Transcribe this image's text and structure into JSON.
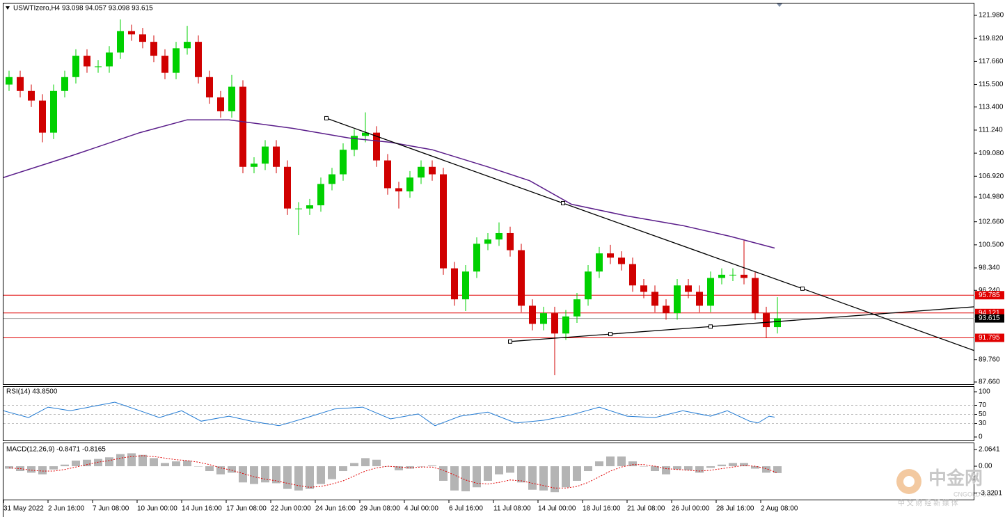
{
  "chart_data": [
    {
      "type": "candlestick",
      "title": "USWTIzero,H4  93.098 94.057 93.098 93.615",
      "up_color": "#00d000",
      "down_color": "#d00000",
      "xlim": [
        0,
        348.75
      ],
      "ylim": [
        87.4,
        123.09
      ],
      "yticks": [
        {
          "value": 121.98,
          "label": "121.980"
        },
        {
          "value": 119.82,
          "label": "119.820"
        },
        {
          "value": 117.66,
          "label": "117.660"
        },
        {
          "value": 115.5,
          "label": "115.500"
        },
        {
          "value": 113.4,
          "label": "113.400"
        },
        {
          "value": 111.24,
          "label": "111.240"
        },
        {
          "value": 109.08,
          "label": "109.080"
        },
        {
          "value": 106.92,
          "label": "106.920"
        },
        {
          "value": 104.98,
          "label": "104.980"
        },
        {
          "value": 102.66,
          "label": "102.660"
        },
        {
          "value": 100.5,
          "label": "100.500"
        },
        {
          "value": 98.34,
          "label": "98.340"
        },
        {
          "value": 96.24,
          "label": "96.240"
        },
        {
          "value": 89.76,
          "label": "89.760"
        },
        {
          "value": 87.66,
          "label": "87.660"
        }
      ],
      "x": [
        2,
        6,
        10,
        14,
        18,
        22,
        26,
        30,
        34,
        38,
        42,
        46,
        50,
        54,
        58,
        62,
        66,
        70,
        74,
        78,
        82,
        86,
        90,
        94,
        98,
        102,
        106,
        110,
        114,
        118,
        122,
        126,
        130,
        134,
        138,
        142,
        146,
        150,
        154,
        158,
        162,
        166,
        170,
        174,
        178,
        182,
        186,
        190,
        194,
        198,
        202,
        206,
        210,
        214,
        218,
        222,
        226,
        230,
        234,
        238,
        242,
        246,
        250,
        254,
        258,
        262,
        266,
        270,
        274,
        278
      ],
      "open": [
        115.5,
        116.2,
        114.9,
        114.0,
        111.0,
        114.9,
        116.2,
        118.2,
        117.2,
        117.2,
        118.5,
        120.5,
        120.2,
        119.5,
        118.2,
        116.6,
        118.9,
        119.5,
        116.2,
        114.3,
        113.0,
        115.3,
        107.8,
        108.1,
        109.7,
        107.8,
        103.9,
        103.9,
        104.2,
        106.2,
        107.1,
        109.4,
        110.7,
        111.0,
        108.4,
        105.8,
        105.5,
        106.8,
        107.8,
        107.1,
        98.3,
        95.4,
        98.0,
        100.6,
        101.0,
        101.6,
        100.0,
        94.8,
        93.1,
        94.1,
        92.2,
        93.8,
        95.4,
        98.0,
        99.7,
        99.3,
        98.7,
        96.7,
        96.1,
        94.8,
        94.1,
        96.7,
        96.1,
        94.8,
        97.4,
        97.7,
        97.7,
        97.4,
        94.1,
        92.8
      ],
      "high": [
        116.8,
        116.8,
        115.5,
        114.6,
        115.5,
        116.8,
        118.8,
        118.8,
        117.8,
        119.1,
        121.6,
        121.1,
        120.8,
        120.1,
        118.8,
        119.5,
        121.0,
        120.1,
        116.8,
        114.9,
        116.4,
        115.9,
        108.7,
        110.3,
        110.3,
        108.4,
        104.5,
        104.8,
        106.8,
        107.7,
        110.0,
        111.3,
        112.9,
        111.6,
        109.0,
        106.4,
        107.4,
        108.4,
        108.4,
        107.7,
        98.9,
        98.6,
        101.2,
        101.6,
        102.6,
        102.2,
        100.6,
        95.4,
        94.7,
        94.7,
        94.4,
        96.0,
        98.6,
        100.3,
        100.5,
        99.9,
        99.3,
        97.3,
        96.7,
        95.4,
        97.3,
        97.3,
        96.7,
        98.0,
        98.3,
        98.3,
        100.9,
        98.0,
        94.7,
        95.6
      ],
      "low": [
        114.9,
        114.3,
        113.4,
        110.1,
        110.4,
        114.3,
        115.6,
        116.6,
        116.6,
        116.6,
        117.9,
        119.6,
        118.9,
        117.6,
        116.0,
        116.0,
        118.3,
        115.6,
        113.7,
        112.4,
        112.4,
        107.2,
        107.2,
        107.5,
        107.2,
        103.3,
        101.4,
        103.3,
        103.6,
        105.6,
        106.5,
        108.8,
        110.1,
        107.8,
        105.2,
        103.9,
        104.9,
        106.2,
        106.5,
        97.7,
        94.8,
        94.3,
        97.4,
        100.0,
        100.4,
        99.4,
        94.2,
        92.5,
        92.5,
        88.3,
        91.6,
        93.2,
        94.8,
        97.4,
        98.7,
        98.1,
        96.1,
        95.5,
        94.2,
        93.5,
        93.5,
        95.5,
        94.2,
        94.2,
        96.8,
        97.1,
        96.8,
        93.5,
        91.8,
        92.2
      ],
      "close": [
        116.2,
        114.9,
        114.0,
        111.0,
        114.9,
        116.2,
        118.2,
        117.2,
        117.2,
        118.5,
        120.5,
        120.2,
        119.5,
        118.2,
        116.6,
        118.9,
        119.5,
        116.2,
        114.3,
        113.0,
        115.3,
        107.8,
        108.1,
        109.7,
        107.8,
        103.9,
        103.9,
        104.2,
        106.2,
        107.1,
        109.4,
        110.7,
        111.0,
        108.4,
        105.8,
        105.5,
        106.8,
        107.8,
        107.1,
        98.3,
        95.4,
        98.0,
        100.6,
        101.0,
        101.6,
        100.0,
        94.8,
        93.1,
        94.1,
        92.2,
        93.8,
        95.4,
        98.0,
        99.7,
        99.3,
        98.7,
        96.7,
        96.1,
        94.8,
        94.1,
        96.7,
        96.1,
        94.8,
        97.4,
        97.7,
        97.7,
        97.4,
        94.1,
        92.8,
        93.615
      ],
      "moving_average": {
        "color": "#5a1d8a",
        "x": [
          0,
          24,
          49,
          66,
          81,
          104,
          124,
          139,
          154,
          174,
          189,
          204,
          224,
          244,
          261,
          277
        ],
        "values": [
          106.8,
          108.8,
          111.0,
          112.2,
          112.2,
          111.4,
          110.5,
          110.1,
          109.4,
          107.8,
          106.5,
          104.3,
          103.2,
          102.3,
          101.3,
          100.2
        ]
      },
      "trendlines": [
        {
          "color": "#000000",
          "x": [
            116,
            201,
            287,
            348.75
          ],
          "values": [
            112.35,
            104.4,
            96.4,
            90.6
          ]
        },
        {
          "color": "#000000",
          "x": [
            182,
            218,
            254,
            348.75
          ],
          "values": [
            91.45,
            92.15,
            92.85,
            94.7
          ]
        }
      ],
      "levels": [
        {
          "value": 95.785,
          "color": "#e00000"
        },
        {
          "value": 94.121,
          "color": "#e00000"
        },
        {
          "value": 93.615,
          "color": "#000000"
        },
        {
          "value": 91.795,
          "color": "#e00000"
        }
      ],
      "xticks": [
        {
          "value": 0,
          "label": "31 May 2022"
        },
        {
          "value": 16,
          "label": "2 Jun 16:00"
        },
        {
          "value": 32,
          "label": "7 Jun 08:00"
        },
        {
          "value": 48,
          "label": "10 Jun 00:00"
        },
        {
          "value": 64,
          "label": "14 Jun 16:00"
        },
        {
          "value": 80,
          "label": "17 Jun 08:00"
        },
        {
          "value": 96,
          "label": "22 Jun 00:00"
        },
        {
          "value": 112,
          "label": "24 Jun 16:00"
        },
        {
          "value": 128,
          "label": "29 Jun 08:00"
        },
        {
          "value": 144,
          "label": "4 Jul 00:00"
        },
        {
          "value": 160,
          "label": "6 Jul 16:00"
        },
        {
          "value": 176,
          "label": "11 Jul 08:00"
        },
        {
          "value": 192,
          "label": "14 Jul 00:00"
        },
        {
          "value": 208,
          "label": "18 Jul 16:00"
        },
        {
          "value": 224,
          "label": "21 Jul 08:00"
        },
        {
          "value": 240,
          "label": "26 Jul 00:00"
        },
        {
          "value": 256,
          "label": "28 Jul 16:00"
        },
        {
          "value": 272,
          "label": "2 Aug 08:00"
        }
      ]
    },
    {
      "type": "line",
      "title": "RSI(14) 43.8500",
      "color": "#1e78d2",
      "xlim": [
        0,
        348.75
      ],
      "ylim": [
        -9.2,
        110.8
      ],
      "yticks": [
        100,
        70,
        50,
        30,
        0
      ],
      "levels": [
        70,
        50,
        30
      ],
      "x": [
        0,
        9,
        16,
        24,
        40,
        49,
        56,
        64,
        71,
        81,
        89,
        99,
        109,
        119,
        129,
        139,
        149,
        155,
        164,
        174,
        184,
        194,
        204,
        214,
        224,
        234,
        244,
        254,
        260,
        268,
        271,
        275,
        277
      ],
      "values": [
        58,
        43,
        66,
        58,
        77,
        58,
        43,
        58,
        35,
        46,
        35,
        25,
        43,
        62,
        66,
        40,
        51,
        25,
        46,
        55,
        31,
        37,
        49,
        66,
        46,
        43,
        58,
        46,
        58,
        35,
        31,
        46,
        43.85
      ]
    },
    {
      "type": "macd",
      "title": "MACD(12,26,9) -0.8471 -0.8165",
      "color": "#b4b4b4",
      "signal_color": "#e00000",
      "xlim": [
        0,
        348.75
      ],
      "ylim": [
        -4.21,
        2.84
      ],
      "yticks": [
        2.0641,
        {
          "value": 0,
          "label": "0.00"
        },
        -3.3201
      ],
      "x": [
        2,
        6,
        10,
        14,
        18,
        22,
        26,
        30,
        34,
        38,
        42,
        46,
        50,
        54,
        58,
        62,
        66,
        70,
        74,
        78,
        82,
        86,
        90,
        94,
        98,
        102,
        106,
        110,
        114,
        118,
        122,
        126,
        130,
        134,
        138,
        142,
        146,
        150,
        154,
        158,
        162,
        166,
        170,
        174,
        178,
        182,
        186,
        190,
        194,
        198,
        202,
        206,
        210,
        214,
        218,
        222,
        226,
        230,
        234,
        238,
        242,
        246,
        250,
        254,
        258,
        262,
        266,
        270,
        274,
        278
      ],
      "values": [
        -0.3,
        -0.6,
        -0.8,
        -1.0,
        -0.4,
        0.2,
        0.7,
        0.8,
        0.9,
        1.1,
        1.5,
        1.6,
        1.4,
        1.0,
        0.4,
        0.6,
        0.7,
        0.0,
        -0.6,
        -1.0,
        -0.8,
        -2.0,
        -2.2,
        -2.0,
        -2.1,
        -2.8,
        -3.0,
        -2.8,
        -2.2,
        -1.6,
        -0.6,
        0.4,
        1.0,
        0.8,
        0.0,
        -0.5,
        -0.3,
        0.0,
        0.1,
        -1.8,
        -3.0,
        -3.1,
        -2.6,
        -1.8,
        -1.0,
        -0.8,
        -2.0,
        -2.9,
        -3.0,
        -3.2,
        -2.6,
        -1.8,
        -0.6,
        0.6,
        1.2,
        1.2,
        0.6,
        0.0,
        -0.6,
        -1.0,
        -0.4,
        -0.5,
        -0.8,
        -0.2,
        0.2,
        0.4,
        0.4,
        -0.3,
        -0.8,
        -0.8471
      ],
      "signal": [
        -0.2,
        -0.3,
        -0.5,
        -0.6,
        -0.6,
        -0.4,
        -0.1,
        0.2,
        0.5,
        0.7,
        1.0,
        1.2,
        1.3,
        1.2,
        1.0,
        0.8,
        0.7,
        0.5,
        0.2,
        -0.2,
        -0.5,
        -0.9,
        -1.3,
        -1.6,
        -1.8,
        -2.1,
        -2.4,
        -2.6,
        -2.5,
        -2.2,
        -1.8,
        -1.2,
        -0.6,
        -0.2,
        0.0,
        -0.1,
        -0.2,
        -0.1,
        -0.1,
        -0.5,
        -1.1,
        -1.7,
        -2.1,
        -2.2,
        -2.0,
        -1.7,
        -1.8,
        -2.1,
        -2.4,
        -2.7,
        -2.7,
        -2.5,
        -2.0,
        -1.3,
        -0.6,
        -0.1,
        0.2,
        0.2,
        0.0,
        -0.3,
        -0.4,
        -0.5,
        -0.6,
        -0.5,
        -0.3,
        -0.1,
        0.1,
        0.0,
        -0.3,
        -0.8165
      ]
    }
  ],
  "watermark": {
    "brand": "中金网",
    "domain": "CNGOLD.COM",
    "slogan": "中 文 财 经 新 媒 体"
  }
}
